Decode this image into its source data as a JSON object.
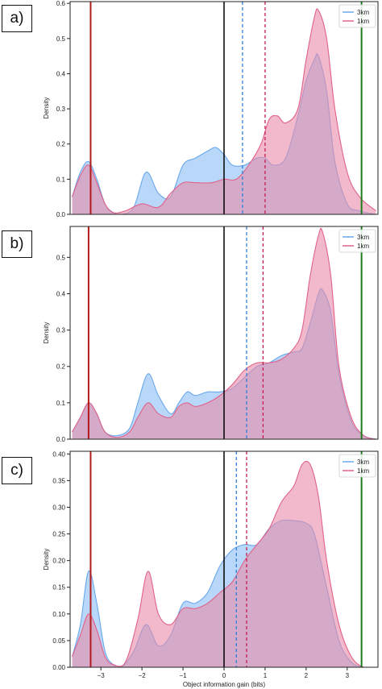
{
  "colors": {
    "series_3km": "#7fb6f2",
    "series_3km_line": "#6aa8ec",
    "series_1km": "#e88aa8",
    "series_1km_line": "#e0628a",
    "overlap": "#a17cc0",
    "zero_line": "#000000",
    "left_marker": "#b31b1b",
    "right_marker": "#1a7f1a",
    "mean_3km": "#2f7fd8",
    "mean_1km": "#c21f4e"
  },
  "chart_data": [
    {
      "panel_label": "a)",
      "type": "area",
      "xlabel": "",
      "ylabel": "Density",
      "xlim": [
        -3.75,
        3.75
      ],
      "ylim": [
        0,
        0.605
      ],
      "yticks": [
        0.0,
        0.1,
        0.2,
        0.3,
        0.4,
        0.5,
        0.6
      ],
      "ytick_labels": [
        "0.0",
        "0.1",
        "0.2",
        "0.3",
        "0.4",
        "0.5",
        "0.6"
      ],
      "legend": {
        "position": "top-right",
        "entries": [
          "3km",
          "1km"
        ]
      },
      "vlines": {
        "left_red": -3.25,
        "zero": 0.0,
        "mean_3km": 0.45,
        "mean_1km": 1.0,
        "right_green": 3.35
      },
      "series": [
        {
          "name": "3km",
          "x": [
            -3.7,
            -3.5,
            -3.3,
            -3.1,
            -2.9,
            -2.7,
            -2.5,
            -2.2,
            -1.9,
            -1.6,
            -1.3,
            -1.0,
            -0.7,
            -0.4,
            -0.2,
            0.0,
            0.2,
            0.5,
            0.8,
            1.0,
            1.2,
            1.5,
            1.8,
            2.0,
            2.2,
            2.3,
            2.5,
            2.7,
            3.0,
            3.3,
            3.7
          ],
          "y": [
            0.05,
            0.12,
            0.15,
            0.1,
            0.03,
            0.005,
            0.0,
            0.02,
            0.12,
            0.06,
            0.05,
            0.14,
            0.16,
            0.18,
            0.19,
            0.17,
            0.14,
            0.14,
            0.16,
            0.16,
            0.14,
            0.16,
            0.28,
            0.38,
            0.44,
            0.45,
            0.35,
            0.15,
            0.03,
            0.01,
            0.0
          ]
        },
        {
          "name": "1km",
          "x": [
            -3.7,
            -3.5,
            -3.3,
            -3.1,
            -2.9,
            -2.7,
            -2.4,
            -2.0,
            -1.6,
            -1.3,
            -1.0,
            -0.7,
            -0.3,
            0.0,
            0.3,
            0.6,
            0.9,
            1.1,
            1.3,
            1.5,
            1.8,
            2.0,
            2.2,
            2.3,
            2.5,
            2.7,
            3.0,
            3.3,
            3.7
          ],
          "y": [
            0.05,
            0.11,
            0.14,
            0.09,
            0.03,
            0.005,
            0.01,
            0.03,
            0.02,
            0.06,
            0.09,
            0.09,
            0.09,
            0.1,
            0.1,
            0.14,
            0.2,
            0.27,
            0.28,
            0.26,
            0.3,
            0.44,
            0.56,
            0.58,
            0.5,
            0.3,
            0.12,
            0.05,
            0.01
          ]
        }
      ]
    },
    {
      "panel_label": "b)",
      "type": "area",
      "xlabel": "",
      "ylabel": "Density",
      "xlim": [
        -3.75,
        3.75
      ],
      "ylim": [
        0,
        0.585
      ],
      "yticks": [
        0.0,
        0.1,
        0.2,
        0.3,
        0.4,
        0.5
      ],
      "ytick_labels": [
        "0.0",
        "0.1",
        "0.2",
        "0.3",
        "0.4",
        "0.5"
      ],
      "legend": {
        "position": "top-right",
        "entries": [
          "3km",
          "1km"
        ]
      },
      "vlines": {
        "left_red": -3.3,
        "zero": 0.0,
        "mean_3km": 0.55,
        "mean_1km": 0.95,
        "right_green": 3.35
      },
      "series": [
        {
          "name": "3km",
          "x": [
            -3.7,
            -3.5,
            -3.3,
            -3.1,
            -2.9,
            -2.6,
            -2.3,
            -2.1,
            -1.85,
            -1.6,
            -1.3,
            -1.1,
            -0.9,
            -0.7,
            -0.4,
            -0.1,
            0.2,
            0.5,
            0.8,
            1.1,
            1.4,
            1.7,
            1.9,
            2.1,
            2.3,
            2.4,
            2.6,
            2.8,
            3.1,
            3.4,
            3.7
          ],
          "y": [
            0.02,
            0.06,
            0.1,
            0.07,
            0.02,
            0.01,
            0.03,
            0.1,
            0.18,
            0.12,
            0.07,
            0.1,
            0.13,
            0.12,
            0.13,
            0.13,
            0.14,
            0.17,
            0.2,
            0.21,
            0.23,
            0.24,
            0.25,
            0.32,
            0.4,
            0.41,
            0.35,
            0.18,
            0.05,
            0.01,
            0.0
          ]
        },
        {
          "name": "1km",
          "x": [
            -3.7,
            -3.5,
            -3.3,
            -3.1,
            -2.9,
            -2.6,
            -2.3,
            -2.1,
            -1.85,
            -1.6,
            -1.3,
            -1.1,
            -0.9,
            -0.7,
            -0.4,
            -0.1,
            0.2,
            0.5,
            0.8,
            1.1,
            1.4,
            1.7,
            1.9,
            2.1,
            2.3,
            2.4,
            2.6,
            2.8,
            3.1,
            3.4,
            3.7
          ],
          "y": [
            0.02,
            0.06,
            0.1,
            0.07,
            0.02,
            0.005,
            0.02,
            0.06,
            0.1,
            0.07,
            0.06,
            0.09,
            0.1,
            0.09,
            0.1,
            0.12,
            0.15,
            0.19,
            0.21,
            0.21,
            0.22,
            0.25,
            0.3,
            0.45,
            0.56,
            0.57,
            0.45,
            0.2,
            0.06,
            0.01,
            0.0
          ]
        }
      ]
    },
    {
      "panel_label": "c)",
      "type": "area",
      "xlabel": "Object information gain (bits)",
      "ylabel": "Density",
      "xlim": [
        -3.75,
        3.75
      ],
      "ylim": [
        0,
        0.405
      ],
      "yticks": [
        0.0,
        0.05,
        0.1,
        0.15,
        0.2,
        0.25,
        0.3,
        0.35,
        0.4
      ],
      "ytick_labels": [
        "0.00",
        "0.05",
        "0.10",
        "0.15",
        "0.20",
        "0.25",
        "0.30",
        "0.35",
        "0.40"
      ],
      "xticks": [
        -3,
        -2,
        -1,
        0,
        1,
        2,
        3
      ],
      "xtick_labels": [
        "−3",
        "−2",
        "−1",
        "0",
        "1",
        "2",
        "3"
      ],
      "legend": {
        "position": "top-right",
        "entries": [
          "3km",
          "1km"
        ]
      },
      "vlines": {
        "left_red": -3.25,
        "zero": 0.0,
        "mean_3km": 0.3,
        "mean_1km": 0.55,
        "right_green": 3.35
      },
      "series": [
        {
          "name": "3km",
          "x": [
            -3.7,
            -3.5,
            -3.3,
            -3.1,
            -2.9,
            -2.7,
            -2.5,
            -2.2,
            -1.9,
            -1.6,
            -1.3,
            -1.0,
            -0.7,
            -0.4,
            -0.1,
            0.2,
            0.5,
            0.8,
            1.1,
            1.4,
            1.7,
            2.0,
            2.2,
            2.5,
            2.8,
            3.1,
            3.4,
            3.7
          ],
          "y": [
            0.02,
            0.08,
            0.18,
            0.12,
            0.03,
            0.005,
            0.0,
            0.03,
            0.08,
            0.04,
            0.06,
            0.12,
            0.12,
            0.14,
            0.19,
            0.22,
            0.23,
            0.23,
            0.26,
            0.275,
            0.275,
            0.27,
            0.25,
            0.15,
            0.05,
            0.01,
            0.0,
            0.0
          ]
        },
        {
          "name": "1km",
          "x": [
            -3.7,
            -3.5,
            -3.3,
            -3.1,
            -2.9,
            -2.7,
            -2.4,
            -2.1,
            -1.85,
            -1.6,
            -1.3,
            -1.0,
            -0.7,
            -0.4,
            -0.1,
            0.2,
            0.5,
            0.8,
            1.1,
            1.4,
            1.7,
            1.9,
            2.1,
            2.3,
            2.5,
            2.8,
            3.1,
            3.4,
            3.7
          ],
          "y": [
            0.02,
            0.06,
            0.1,
            0.07,
            0.02,
            0.005,
            0.01,
            0.09,
            0.18,
            0.1,
            0.08,
            0.11,
            0.11,
            0.12,
            0.14,
            0.16,
            0.2,
            0.23,
            0.26,
            0.31,
            0.34,
            0.38,
            0.38,
            0.32,
            0.2,
            0.08,
            0.02,
            0.0,
            0.0
          ]
        }
      ]
    }
  ]
}
